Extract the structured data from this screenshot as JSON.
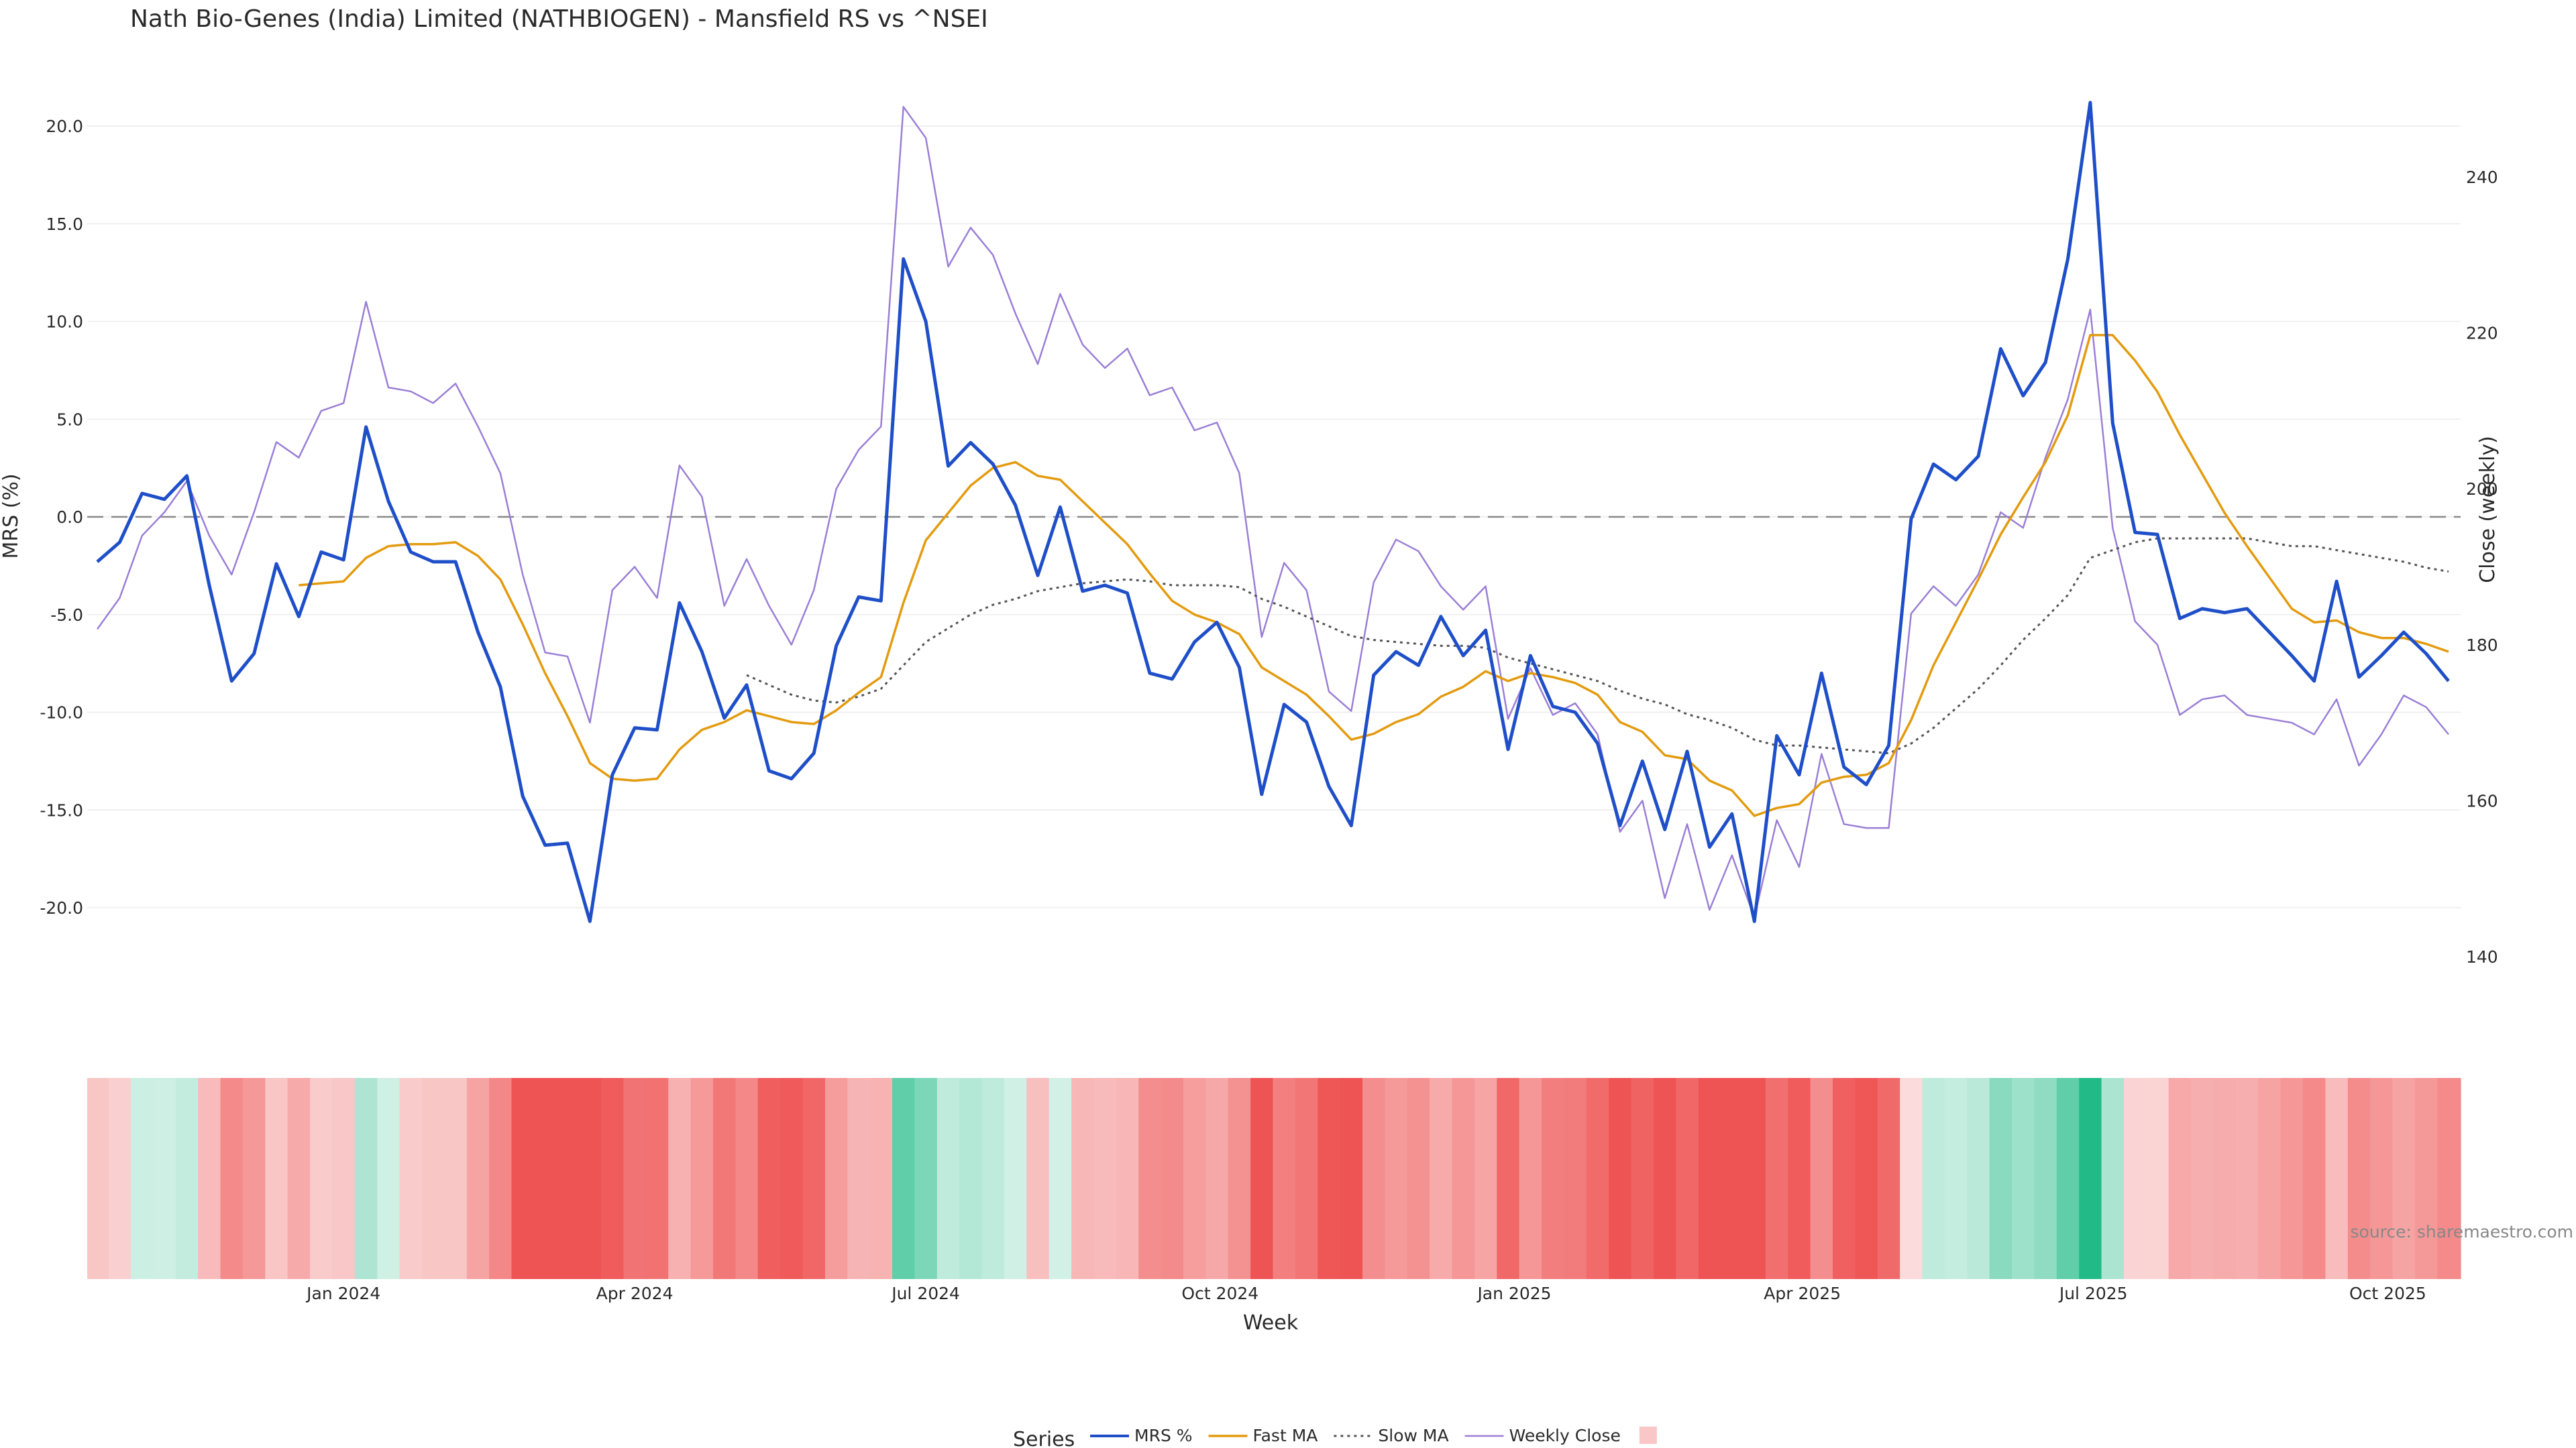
{
  "chart_data": {
    "type": "line",
    "title": "Nath Bio-Genes (India) Limited (NATHBIOGEN) - Mansfield RS vs ^NSEI",
    "xlabel": "Week",
    "ylabel_left": "MRS (%)",
    "ylabel_right": "Close (weekly)",
    "source": "source: sharemaestro.com",
    "legend_title": "Series",
    "legend_position": "bottom-center",
    "ylim_left": [
      -22,
      22
    ],
    "ylim_right": [
      138,
      250
    ],
    "yticks_left": [
      "20.0",
      "15.0",
      "10.0",
      "5.0",
      "0.0",
      "-5.0",
      "-10.0",
      "-15.0",
      "-20.0"
    ],
    "yticks_right": [
      "240",
      "220",
      "200",
      "180",
      "160",
      "140"
    ],
    "x_ticks": [
      "Jan 2024",
      "Apr 2024",
      "Jul 2024",
      "Oct 2024",
      "Jan 2025",
      "Apr 2025",
      "Jul 2025",
      "Oct 2025"
    ],
    "x_start": "2023-10-16",
    "zero_line": 0,
    "colors": {
      "mrs": "#1f4fc8",
      "fast": "#e39b0f",
      "slow": "#555555",
      "close": "#9b7fd6",
      "zero": "#888888"
    },
    "series": [
      {
        "name": "MRS %",
        "axis": "left",
        "style": "solid",
        "values": [
          -2.3,
          -1.3,
          1.2,
          0.9,
          2.1,
          -3.5,
          -8.4,
          -7.0,
          -2.4,
          -5.1,
          -1.8,
          -2.2,
          4.6,
          0.8,
          -1.8,
          -2.3,
          -2.3,
          -5.9,
          -8.7,
          -14.3,
          -16.8,
          -16.7,
          -20.7,
          -13.2,
          -10.8,
          -10.9,
          -4.4,
          -6.9,
          -10.3,
          -8.6,
          -13.0,
          -13.4,
          -12.1,
          -6.6,
          -4.1,
          -4.3,
          13.2,
          10.0,
          2.6,
          3.8,
          2.7,
          0.6,
          -3.0,
          0.5,
          -3.8,
          -3.5,
          -3.9,
          -8.0,
          -8.3,
          -6.4,
          -5.4,
          -7.7,
          -14.2,
          -9.6,
          -10.5,
          -13.8,
          -15.8,
          -8.1,
          -6.9,
          -7.6,
          -5.1,
          -7.1,
          -5.8,
          -11.9,
          -7.1,
          -9.7,
          -10.0,
          -11.6,
          -15.8,
          -12.5,
          -16.0,
          -12.0,
          -16.9,
          -15.2,
          -20.7,
          -11.2,
          -13.2,
          -8.0,
          -12.8,
          -13.7,
          -11.7,
          -0.1,
          2.7,
          1.9,
          3.1,
          8.6,
          6.2,
          7.9,
          13.2,
          21.2,
          4.8,
          -0.8,
          -0.9,
          -5.2,
          -4.7,
          -4.9,
          -4.7,
          -5.9,
          -7.1,
          -8.4,
          -3.3,
          -8.2,
          -7.1,
          -5.9,
          -7.0,
          -8.4
        ]
      },
      {
        "name": "Fast MA",
        "axis": "left",
        "style": "solid",
        "values": [
          null,
          null,
          null,
          null,
          null,
          null,
          null,
          null,
          null,
          -3.5,
          -3.4,
          -3.3,
          -2.1,
          -1.5,
          -1.4,
          -1.4,
          -1.3,
          -2.0,
          -3.2,
          -5.5,
          -8.0,
          -10.2,
          -12.6,
          -13.4,
          -13.5,
          -13.4,
          -11.9,
          -10.9,
          -10.5,
          -9.9,
          -10.2,
          -10.5,
          -10.6,
          -9.9,
          -9.0,
          -8.2,
          -4.4,
          -1.2,
          0.2,
          1.6,
          2.5,
          2.8,
          2.1,
          1.9,
          0.8,
          -0.3,
          -1.4,
          -2.9,
          -4.3,
          -5.0,
          -5.4,
          -6.0,
          -7.7,
          -8.4,
          -9.1,
          -10.2,
          -11.4,
          -11.1,
          -10.5,
          -10.1,
          -9.2,
          -8.7,
          -7.9,
          -8.4,
          -8.0,
          -8.2,
          -8.5,
          -9.1,
          -10.5,
          -11.0,
          -12.2,
          -12.4,
          -13.5,
          -14.0,
          -15.3,
          -14.9,
          -14.7,
          -13.6,
          -13.3,
          -13.2,
          -12.6,
          -10.4,
          -7.6,
          -5.4,
          -3.2,
          -0.9,
          1.0,
          2.8,
          5.2,
          9.3,
          9.3,
          8.0,
          6.4,
          4.2,
          2.2,
          0.2,
          -1.5,
          -3.1,
          -4.7,
          -5.4,
          -5.3,
          -5.9,
          -6.2,
          -6.2,
          -6.5,
          -6.9
        ]
      },
      {
        "name": "Slow MA",
        "axis": "left",
        "style": "dotted",
        "values": [
          null,
          null,
          null,
          null,
          null,
          null,
          null,
          null,
          null,
          null,
          null,
          null,
          null,
          null,
          null,
          null,
          null,
          null,
          null,
          null,
          null,
          null,
          null,
          null,
          null,
          null,
          null,
          null,
          null,
          -8.1,
          -8.6,
          -9.1,
          -9.4,
          -9.5,
          -9.2,
          -8.8,
          -7.6,
          -6.4,
          -5.7,
          -5.0,
          -4.5,
          -4.2,
          -3.8,
          -3.6,
          -3.4,
          -3.3,
          -3.2,
          -3.3,
          -3.5,
          -3.5,
          -3.5,
          -3.6,
          -4.2,
          -4.6,
          -5.1,
          -5.6,
          -6.1,
          -6.3,
          -6.4,
          -6.5,
          -6.6,
          -6.6,
          -6.7,
          -7.2,
          -7.5,
          -7.8,
          -8.1,
          -8.4,
          -8.9,
          -9.3,
          -9.6,
          -10.1,
          -10.4,
          -10.8,
          -11.4,
          -11.7,
          -11.7,
          -11.8,
          -11.9,
          -12.0,
          -12.1,
          -11.6,
          -10.8,
          -9.8,
          -8.8,
          -7.6,
          -6.3,
          -5.2,
          -4.0,
          -2.1,
          -1.7,
          -1.3,
          -1.1,
          -1.1,
          -1.1,
          -1.1,
          -1.1,
          -1.3,
          -1.5,
          -1.5,
          -1.7,
          -1.9,
          -2.1,
          -2.3,
          -2.6,
          -2.8
        ]
      },
      {
        "name": "Weekly Close",
        "axis": "right",
        "style": "solid",
        "values": [
          182.0,
          186.0,
          194.0,
          197.0,
          201.0,
          194.0,
          189.0,
          197.0,
          206.0,
          204.0,
          210.0,
          211.0,
          224.0,
          213.0,
          212.5,
          211.0,
          213.5,
          208.0,
          202.0,
          189.0,
          179.0,
          178.5,
          170.0,
          187.0,
          190.0,
          186.0,
          203.0,
          199.0,
          185.0,
          191.0,
          185.0,
          180.0,
          187.0,
          200.0,
          205.0,
          208.0,
          249.0,
          245.0,
          228.5,
          233.5,
          230.0,
          222.5,
          216.0,
          225.0,
          218.5,
          215.5,
          218.0,
          212.0,
          213.0,
          207.5,
          208.5,
          202.0,
          181.0,
          190.5,
          187.0,
          174.0,
          171.5,
          188.0,
          193.5,
          192.0,
          187.5,
          184.5,
          187.5,
          170.5,
          177.0,
          171.0,
          172.5,
          168.5,
          156.0,
          160.0,
          147.5,
          157.0,
          146.0,
          153.0,
          145.0,
          157.5,
          151.5,
          166.0,
          157.0,
          156.5,
          156.5,
          184.0,
          187.5,
          185.0,
          189.0,
          197.0,
          195.0,
          204.0,
          211.5,
          223.0,
          195.0,
          183.0,
          180.0,
          171.0,
          173.0,
          173.5,
          171.0,
          170.5,
          170.0,
          168.5,
          173.0,
          164.5,
          168.5,
          173.5,
          172.0,
          168.5
        ]
      },
      {
        "name": "",
        "axis": "none",
        "style": "heat",
        "color": "#f9c7c7",
        "values": []
      }
    ]
  }
}
